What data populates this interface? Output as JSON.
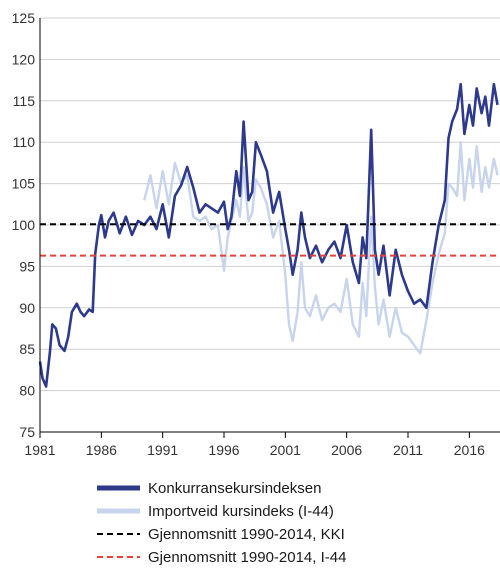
{
  "colors": {
    "kki": "#2d3a8c",
    "i44": "#c7d4ec",
    "avg_kki": "#000000",
    "avg_i44": "#e8413a",
    "grid": "#d0d0d0",
    "axis": "#000000"
  },
  "chart_data": {
    "type": "line",
    "title": "",
    "xlabel": "",
    "ylabel": "",
    "xlim": [
      1981,
      2018.5
    ],
    "ylim": [
      75,
      125
    ],
    "x_ticks": [
      "1981",
      "1986",
      "1991",
      "1996",
      "2001",
      "2006",
      "2011",
      "2016"
    ],
    "x_tick_values": [
      1981,
      1986,
      1991,
      1996,
      2001,
      2006,
      2011,
      2016
    ],
    "y_ticks": [
      "75",
      "80",
      "85",
      "90",
      "95",
      "100",
      "105",
      "110",
      "115",
      "120",
      "125"
    ],
    "y_tick_values": [
      75,
      80,
      85,
      90,
      95,
      100,
      105,
      110,
      115,
      120,
      125
    ],
    "grid": "horizontal",
    "legend_position": "bottom",
    "series": [
      {
        "name": "Konkurransekursindeksen",
        "color_key": "kki",
        "style": "solid",
        "x": [
          1981.0,
          1981.2,
          1981.5,
          1981.8,
          1982.0,
          1982.3,
          1982.6,
          1983.0,
          1983.3,
          1983.6,
          1984.0,
          1984.3,
          1984.6,
          1985.0,
          1985.3,
          1985.5,
          1985.8,
          1986.0,
          1986.3,
          1986.6,
          1987.0,
          1987.5,
          1988.0,
          1988.5,
          1989.0,
          1989.5,
          1990.0,
          1990.5,
          1991.0,
          1991.5,
          1992.0,
          1992.5,
          1993.0,
          1993.5,
          1994.0,
          1994.5,
          1995.0,
          1995.5,
          1996.0,
          1996.3,
          1996.6,
          1997.0,
          1997.3,
          1997.6,
          1998.0,
          1998.3,
          1998.6,
          1999.0,
          1999.5,
          2000.0,
          2000.5,
          2001.0,
          2001.3,
          2001.6,
          2002.0,
          2002.3,
          2002.6,
          2003.0,
          2003.5,
          2004.0,
          2004.5,
          2005.0,
          2005.5,
          2006.0,
          2006.5,
          2007.0,
          2007.3,
          2007.6,
          2008.0,
          2008.3,
          2008.6,
          2009.0,
          2009.5,
          2010.0,
          2010.5,
          2011.0,
          2011.5,
          2012.0,
          2012.5,
          2013.0,
          2013.5,
          2014.0,
          2014.3,
          2014.6,
          2015.0,
          2015.3,
          2015.6,
          2016.0,
          2016.3,
          2016.6,
          2017.0,
          2017.3,
          2017.6,
          2018.0,
          2018.3
        ],
        "values": [
          83.5,
          81.5,
          80.5,
          84.5,
          88.0,
          87.5,
          85.5,
          84.8,
          86.5,
          89.5,
          90.5,
          89.5,
          89.0,
          89.8,
          89.5,
          96.5,
          100.0,
          101.2,
          98.5,
          100.5,
          101.5,
          99.0,
          101.0,
          98.8,
          100.5,
          100.0,
          101.0,
          99.5,
          102.5,
          98.5,
          103.5,
          104.8,
          107.0,
          104.5,
          101.5,
          102.5,
          102.0,
          101.5,
          102.8,
          99.5,
          101.0,
          106.5,
          103.5,
          112.5,
          103.0,
          104.0,
          110.0,
          108.5,
          106.5,
          101.5,
          104.0,
          99.5,
          97.0,
          94.0,
          97.0,
          101.5,
          98.5,
          96.0,
          97.5,
          95.5,
          97.0,
          98.0,
          96.0,
          100.0,
          95.5,
          93.0,
          98.5,
          96.0,
          111.5,
          97.0,
          94.0,
          97.5,
          91.5,
          97.0,
          94.0,
          92.0,
          90.5,
          91.0,
          90.0,
          95.5,
          100.0,
          103.0,
          110.5,
          112.5,
          114.0,
          117.0,
          111.0,
          114.5,
          112.0,
          116.5,
          113.5,
          115.5,
          112.0,
          117.0,
          114.5
        ]
      },
      {
        "name": "Importveid kursindeks (I-44)",
        "color_key": "i44",
        "style": "solid",
        "x": [
          1989.5,
          1990.0,
          1990.5,
          1991.0,
          1991.5,
          1992.0,
          1992.5,
          1993.0,
          1993.5,
          1994.0,
          1994.5,
          1995.0,
          1995.5,
          1996.0,
          1996.3,
          1996.6,
          1997.0,
          1997.3,
          1997.6,
          1998.0,
          1998.3,
          1998.6,
          1999.0,
          1999.5,
          2000.0,
          2000.5,
          2001.0,
          2001.3,
          2001.6,
          2002.0,
          2002.3,
          2002.6,
          2003.0,
          2003.5,
          2004.0,
          2004.5,
          2005.0,
          2005.5,
          2006.0,
          2006.5,
          2007.0,
          2007.3,
          2007.6,
          2008.0,
          2008.3,
          2008.6,
          2009.0,
          2009.5,
          2010.0,
          2010.5,
          2011.0,
          2011.5,
          2012.0,
          2012.5,
          2013.0,
          2013.5,
          2014.0,
          2014.3,
          2014.6,
          2015.0,
          2015.3,
          2015.6,
          2016.0,
          2016.3,
          2016.6,
          2017.0,
          2017.3,
          2017.6,
          2018.0,
          2018.3
        ],
        "values": [
          103.0,
          106.0,
          102.0,
          106.5,
          102.5,
          107.5,
          105.0,
          106.0,
          101.0,
          100.5,
          101.0,
          99.5,
          100.0,
          94.5,
          98.5,
          100.5,
          103.0,
          101.0,
          107.0,
          100.5,
          101.5,
          105.5,
          104.5,
          102.5,
          98.5,
          100.5,
          94.0,
          88.0,
          86.0,
          89.5,
          95.5,
          90.0,
          89.0,
          91.5,
          88.5,
          90.0,
          90.5,
          89.5,
          93.5,
          88.0,
          86.5,
          93.0,
          89.0,
          101.0,
          92.5,
          88.0,
          91.0,
          86.5,
          90.0,
          87.0,
          86.5,
          85.5,
          84.5,
          88.5,
          93.0,
          96.5,
          99.0,
          105.0,
          104.5,
          103.5,
          110.0,
          103.0,
          108.0,
          104.5,
          109.5,
          104.0,
          107.0,
          104.5,
          108.0,
          106.0
        ]
      },
      {
        "name": "Gjennomsnitt 1990-2014,  KKI",
        "color_key": "avg_kki",
        "style": "dashed",
        "x": [
          1981,
          2018.5
        ],
        "values": [
          100.1,
          100.1
        ]
      },
      {
        "name": "Gjennomsnitt 1990-2014, I-44",
        "color_key": "avg_i44",
        "style": "dashed",
        "x": [
          1981,
          2018.5
        ],
        "values": [
          96.3,
          96.3
        ]
      }
    ]
  }
}
